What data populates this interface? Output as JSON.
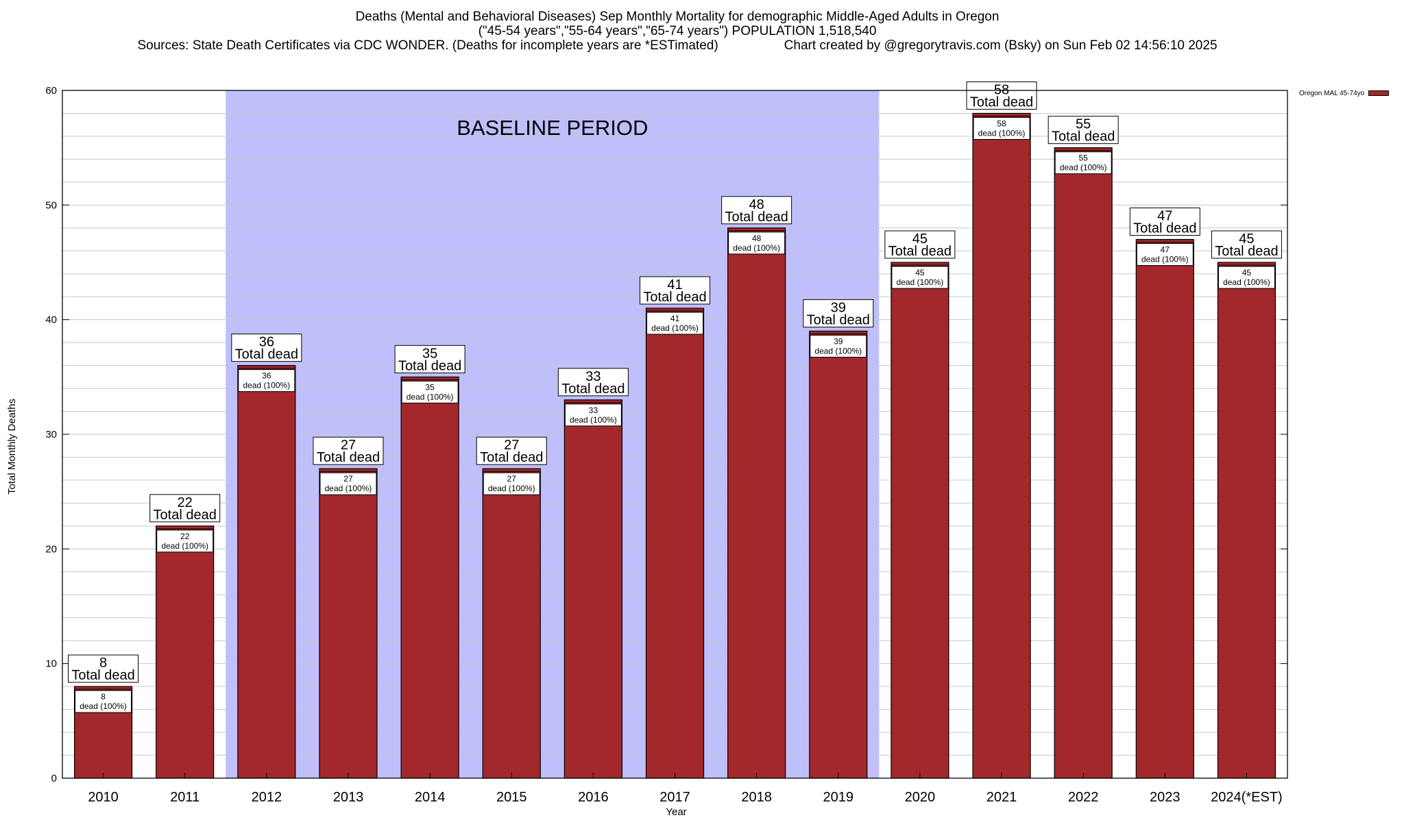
{
  "header": {
    "title": "Deaths (Mental and Behavioral Diseases) Sep Monthly Mortality for demographic Middle-Aged Adults in Oregon",
    "subtitle": "(\"45-54 years\",\"55-64 years\",\"65-74 years\") POPULATION 1,518,540",
    "sources": "Sources: State Death Certificates via CDC WONDER. (Deaths for incomplete years are *ESTimated)",
    "credit": "Chart created by @gregorytravis.com (Bsky) on Sun Feb 02 14:56:10 2025"
  },
  "colors": {
    "bar": "#a3282b",
    "baseline": "#bfbffc",
    "grid": "#c8c8c8"
  },
  "chart_data": {
    "type": "bar",
    "categories": [
      "2010",
      "2011",
      "2012",
      "2013",
      "2014",
      "2015",
      "2016",
      "2017",
      "2018",
      "2019",
      "2020",
      "2021",
      "2022",
      "2023",
      "2024(*EST)"
    ],
    "series": [
      {
        "name": "Oregon MAL 45-74yo",
        "values": [
          8,
          22,
          36,
          27,
          35,
          27,
          33,
          41,
          48,
          39,
          45,
          58,
          55,
          47,
          45
        ]
      }
    ],
    "xlabel": "Year",
    "ylabel": "Total Monthly Deaths",
    "ylim": [
      0,
      60
    ],
    "yticks": [
      0,
      10,
      20,
      30,
      40,
      50,
      60
    ],
    "minor_grid_step": 2,
    "grid": true,
    "legend": "top-right",
    "baseline_period": {
      "label": "BASELINE PERIOD",
      "from": "2012",
      "to": "2019"
    },
    "total_label": "Total dead",
    "inner_label": "dead (100%)"
  }
}
